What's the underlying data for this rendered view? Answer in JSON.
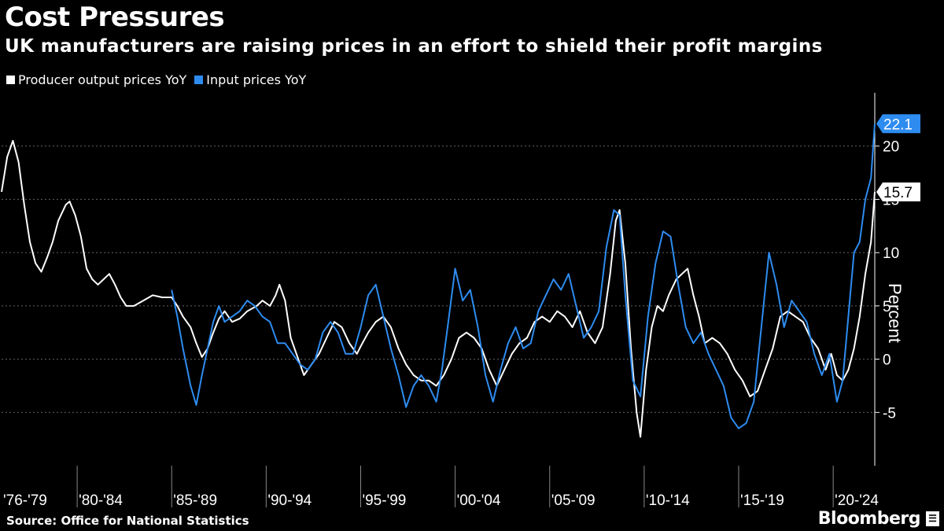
{
  "header": {
    "title": "Cost Pressures",
    "subtitle": "UK manufacturers are raising prices in an effort to shield their profit margins"
  },
  "legend": [
    {
      "label": "Producer output prices YoY",
      "color": "#ffffff"
    },
    {
      "label": "Input prices YoY",
      "color": "#2e8cf0"
    }
  ],
  "footer": {
    "source": "Source: Office for National Statistics",
    "brand": "Bloomberg"
  },
  "chart_data": {
    "type": "line",
    "ylabel": "Percent",
    "ylim": [
      -10,
      25
    ],
    "xlim": [
      1976,
      2022.2
    ],
    "yticks": [
      -5,
      0,
      5,
      10,
      15,
      20
    ],
    "x_tick_labels": [
      "'76-'79",
      "'80-'84",
      "'85-'89",
      "'90-'94",
      "'95-'99",
      "'00-'04",
      "'05-'09",
      "'10-'14",
      "'15-'19",
      "'20-'24"
    ],
    "x_tick_starts": [
      1976,
      1980,
      1985,
      1990,
      1995,
      2000,
      2005,
      2010,
      2015,
      2020
    ],
    "grid": true,
    "legend_position": "top-left",
    "series": [
      {
        "name": "Producer output prices YoY",
        "color": "#ffffff",
        "points": [
          [
            1976.0,
            15.7
          ],
          [
            1976.3,
            19.0
          ],
          [
            1976.6,
            20.5
          ],
          [
            1976.9,
            18.5
          ],
          [
            1977.2,
            14.5
          ],
          [
            1977.5,
            11.0
          ],
          [
            1977.8,
            9.0
          ],
          [
            1978.1,
            8.2
          ],
          [
            1978.4,
            9.5
          ],
          [
            1978.7,
            11.0
          ],
          [
            1979.0,
            13.0
          ],
          [
            1979.4,
            14.5
          ],
          [
            1979.6,
            14.8
          ],
          [
            1979.9,
            13.5
          ],
          [
            1980.2,
            11.5
          ],
          [
            1980.5,
            8.5
          ],
          [
            1980.8,
            7.5
          ],
          [
            1981.1,
            7.0
          ],
          [
            1981.4,
            7.5
          ],
          [
            1981.7,
            8.0
          ],
          [
            1982.0,
            7.0
          ],
          [
            1982.3,
            5.8
          ],
          [
            1982.6,
            5.0
          ],
          [
            1983.0,
            5.0
          ],
          [
            1983.5,
            5.5
          ],
          [
            1984.0,
            6.0
          ],
          [
            1984.5,
            5.8
          ],
          [
            1985.0,
            5.8
          ],
          [
            1985.3,
            5.0
          ],
          [
            1985.6,
            4.0
          ],
          [
            1986.0,
            3.0
          ],
          [
            1986.3,
            1.5
          ],
          [
            1986.6,
            0.2
          ],
          [
            1986.9,
            1.0
          ],
          [
            1987.2,
            2.5
          ],
          [
            1987.5,
            3.8
          ],
          [
            1987.8,
            4.5
          ],
          [
            1988.2,
            3.5
          ],
          [
            1988.6,
            3.8
          ],
          [
            1989.0,
            4.5
          ],
          [
            1989.5,
            5.0
          ],
          [
            1989.8,
            5.5
          ],
          [
            1990.2,
            5.0
          ],
          [
            1990.5,
            6.0
          ],
          [
            1990.7,
            7.0
          ],
          [
            1991.0,
            5.5
          ],
          [
            1991.3,
            2.0
          ],
          [
            1991.6,
            0.5
          ],
          [
            1992.0,
            -1.5
          ],
          [
            1992.4,
            -0.5
          ],
          [
            1992.8,
            0.5
          ],
          [
            1993.2,
            2.0
          ],
          [
            1993.6,
            3.5
          ],
          [
            1994.0,
            3.0
          ],
          [
            1994.4,
            1.5
          ],
          [
            1994.8,
            0.5
          ],
          [
            1995.0,
            1.2
          ],
          [
            1995.4,
            2.5
          ],
          [
            1995.8,
            3.5
          ],
          [
            1996.2,
            4.0
          ],
          [
            1996.6,
            3.0
          ],
          [
            1997.0,
            1.0
          ],
          [
            1997.4,
            -0.5
          ],
          [
            1997.8,
            -1.5
          ],
          [
            1998.2,
            -2.0
          ],
          [
            1998.6,
            -2.0
          ],
          [
            1999.0,
            -2.5
          ],
          [
            1999.4,
            -1.5
          ],
          [
            1999.8,
            0.0
          ],
          [
            2000.2,
            2.0
          ],
          [
            2000.6,
            2.5
          ],
          [
            2001.0,
            2.0
          ],
          [
            2001.4,
            1.0
          ],
          [
            2001.8,
            -1.0
          ],
          [
            2002.2,
            -2.5
          ],
          [
            2002.6,
            -1.0
          ],
          [
            2003.0,
            0.5
          ],
          [
            2003.4,
            1.5
          ],
          [
            2003.8,
            2.0
          ],
          [
            2004.2,
            3.5
          ],
          [
            2004.6,
            4.0
          ],
          [
            2005.0,
            3.5
          ],
          [
            2005.4,
            4.5
          ],
          [
            2005.8,
            4.0
          ],
          [
            2006.2,
            3.0
          ],
          [
            2006.6,
            4.5
          ],
          [
            2007.0,
            2.5
          ],
          [
            2007.4,
            1.5
          ],
          [
            2007.8,
            3.0
          ],
          [
            2008.2,
            8.0
          ],
          [
            2008.5,
            13.0
          ],
          [
            2008.7,
            14.0
          ],
          [
            2009.0,
            9.0
          ],
          [
            2009.3,
            1.0
          ],
          [
            2009.6,
            -5.0
          ],
          [
            2009.8,
            -7.3
          ],
          [
            2010.1,
            -1.0
          ],
          [
            2010.4,
            3.0
          ],
          [
            2010.7,
            5.0
          ],
          [
            2011.0,
            4.5
          ],
          [
            2011.3,
            6.0
          ],
          [
            2011.7,
            7.5
          ],
          [
            2012.0,
            8.0
          ],
          [
            2012.3,
            8.5
          ],
          [
            2012.6,
            6.0
          ],
          [
            2012.9,
            4.0
          ],
          [
            2013.2,
            1.5
          ],
          [
            2013.6,
            2.0
          ],
          [
            2014.0,
            1.5
          ],
          [
            2014.4,
            0.5
          ],
          [
            2014.8,
            -1.0
          ],
          [
            2015.2,
            -2.0
          ],
          [
            2015.6,
            -3.5
          ],
          [
            2016.0,
            -3.0
          ],
          [
            2016.4,
            -1.0
          ],
          [
            2016.8,
            1.0
          ],
          [
            2017.2,
            4.0
          ],
          [
            2017.6,
            4.5
          ],
          [
            2018.0,
            4.0
          ],
          [
            2018.4,
            3.5
          ],
          [
            2018.8,
            2.0
          ],
          [
            2019.2,
            1.0
          ],
          [
            2019.6,
            -1.0
          ],
          [
            2019.9,
            0.5
          ],
          [
            2020.2,
            -1.5
          ],
          [
            2020.5,
            -2.0
          ],
          [
            2020.8,
            -1.0
          ],
          [
            2021.1,
            1.0
          ],
          [
            2021.4,
            4.0
          ],
          [
            2021.7,
            8.0
          ],
          [
            2022.0,
            11.0
          ],
          [
            2022.2,
            15.7
          ]
        ]
      },
      {
        "name": "Input prices YoY",
        "color": "#2e8cf0",
        "points": [
          [
            1985.0,
            6.5
          ],
          [
            1985.3,
            4.0
          ],
          [
            1985.6,
            1.0
          ],
          [
            1986.0,
            -2.5
          ],
          [
            1986.3,
            -4.3
          ],
          [
            1986.6,
            -1.5
          ],
          [
            1986.9,
            1.0
          ],
          [
            1987.2,
            3.5
          ],
          [
            1987.5,
            5.0
          ],
          [
            1987.8,
            3.5
          ],
          [
            1988.2,
            4.0
          ],
          [
            1988.6,
            4.5
          ],
          [
            1989.0,
            5.5
          ],
          [
            1989.4,
            5.0
          ],
          [
            1989.8,
            4.0
          ],
          [
            1990.2,
            3.5
          ],
          [
            1990.6,
            1.5
          ],
          [
            1991.0,
            1.5
          ],
          [
            1991.4,
            0.5
          ],
          [
            1991.8,
            -0.5
          ],
          [
            1992.2,
            -1.0
          ],
          [
            1992.6,
            0.0
          ],
          [
            1993.0,
            2.5
          ],
          [
            1993.4,
            3.5
          ],
          [
            1993.8,
            2.5
          ],
          [
            1994.2,
            0.5
          ],
          [
            1994.6,
            0.5
          ],
          [
            1995.0,
            3.0
          ],
          [
            1995.4,
            6.0
          ],
          [
            1995.8,
            7.0
          ],
          [
            1996.2,
            4.0
          ],
          [
            1996.6,
            1.0
          ],
          [
            1997.0,
            -1.5
          ],
          [
            1997.4,
            -4.5
          ],
          [
            1997.8,
            -2.5
          ],
          [
            1998.2,
            -1.5
          ],
          [
            1998.6,
            -2.5
          ],
          [
            1999.0,
            -4.0
          ],
          [
            1999.3,
            -1.0
          ],
          [
            1999.6,
            3.0
          ],
          [
            2000.0,
            8.5
          ],
          [
            2000.4,
            5.5
          ],
          [
            2000.8,
            6.5
          ],
          [
            2001.2,
            3.0
          ],
          [
            2001.6,
            -1.5
          ],
          [
            2002.0,
            -4.0
          ],
          [
            2002.4,
            -1.0
          ],
          [
            2002.8,
            1.5
          ],
          [
            2003.2,
            3.0
          ],
          [
            2003.6,
            1.0
          ],
          [
            2004.0,
            1.5
          ],
          [
            2004.4,
            4.5
          ],
          [
            2004.8,
            6.0
          ],
          [
            2005.2,
            7.5
          ],
          [
            2005.6,
            6.5
          ],
          [
            2006.0,
            8.0
          ],
          [
            2006.4,
            5.0
          ],
          [
            2006.8,
            2.0
          ],
          [
            2007.2,
            3.0
          ],
          [
            2007.6,
            4.5
          ],
          [
            2008.0,
            10.5
          ],
          [
            2008.4,
            14.0
          ],
          [
            2008.7,
            13.5
          ],
          [
            2009.0,
            6.0
          ],
          [
            2009.4,
            -2.0
          ],
          [
            2009.8,
            -3.5
          ],
          [
            2010.2,
            4.0
          ],
          [
            2010.6,
            9.0
          ],
          [
            2011.0,
            12.0
          ],
          [
            2011.4,
            11.5
          ],
          [
            2011.8,
            7.0
          ],
          [
            2012.2,
            3.0
          ],
          [
            2012.6,
            1.5
          ],
          [
            2013.0,
            2.5
          ],
          [
            2013.4,
            0.5
          ],
          [
            2013.8,
            -1.0
          ],
          [
            2014.2,
            -2.5
          ],
          [
            2014.6,
            -5.5
          ],
          [
            2015.0,
            -6.5
          ],
          [
            2015.4,
            -6.0
          ],
          [
            2015.8,
            -4.0
          ],
          [
            2016.2,
            3.0
          ],
          [
            2016.6,
            10.0
          ],
          [
            2017.0,
            7.0
          ],
          [
            2017.4,
            3.0
          ],
          [
            2017.8,
            5.5
          ],
          [
            2018.2,
            4.5
          ],
          [
            2018.6,
            3.5
          ],
          [
            2019.0,
            0.5
          ],
          [
            2019.4,
            -1.5
          ],
          [
            2019.8,
            0.5
          ],
          [
            2020.2,
            -4.0
          ],
          [
            2020.5,
            -2.0
          ],
          [
            2020.8,
            4.0
          ],
          [
            2021.1,
            10.0
          ],
          [
            2021.4,
            11.0
          ],
          [
            2021.7,
            15.0
          ],
          [
            2022.0,
            17.0
          ],
          [
            2022.2,
            22.1
          ]
        ]
      }
    ],
    "end_labels": [
      {
        "series": "Input prices YoY",
        "text": "22.1"
      },
      {
        "series": "Producer output prices YoY",
        "text": "15.7"
      }
    ]
  }
}
